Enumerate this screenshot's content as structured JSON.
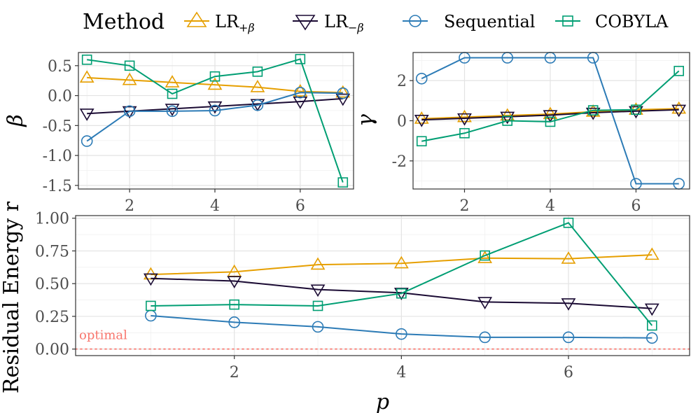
{
  "legend": {
    "title": "Method",
    "entries": [
      {
        "key": "lr_plus",
        "label_main": "LR",
        "label_sub": "+β",
        "color": "#E69F00",
        "marker": "triangle-up"
      },
      {
        "key": "lr_minus",
        "label_main": "LR",
        "label_sub": "−β",
        "color": "#1A0A33",
        "marker": "triangle-down"
      },
      {
        "key": "sequential",
        "label_main": "Sequential",
        "label_sub": "",
        "color": "#2C7BB6",
        "marker": "circle"
      },
      {
        "key": "cobyla",
        "label_main": "COBYLA",
        "label_sub": "",
        "color": "#009E73",
        "marker": "square"
      }
    ]
  },
  "chart_data": [
    {
      "id": "beta",
      "type": "line",
      "ylabel": "β",
      "xlabel": "",
      "xlim": [
        0.8,
        7.25
      ],
      "ylim": [
        -1.56,
        0.72
      ],
      "xticks": [
        2,
        4,
        6
      ],
      "yticks": [
        0.5,
        0.0,
        -0.5,
        -1.0,
        -1.5
      ],
      "ytick_labels": [
        "0.5",
        "0.0",
        "-0.5",
        "-1.0",
        "-1.5"
      ],
      "grid": true,
      "x": [
        1,
        2,
        3,
        4,
        5,
        6,
        7
      ],
      "series": [
        {
          "key": "lr_plus",
          "values": [
            0.3,
            0.26,
            0.22,
            0.18,
            0.14,
            0.07,
            0.05
          ]
        },
        {
          "key": "lr_minus",
          "values": [
            -0.3,
            -0.26,
            -0.22,
            -0.18,
            -0.14,
            -0.1,
            -0.05
          ]
        },
        {
          "key": "sequential",
          "values": [
            -0.76,
            -0.26,
            -0.26,
            -0.25,
            -0.16,
            0.05,
            0.04
          ]
        },
        {
          "key": "cobyla",
          "values": [
            0.6,
            0.5,
            0.03,
            0.32,
            0.4,
            0.61,
            -1.45
          ]
        }
      ]
    },
    {
      "id": "gamma",
      "type": "line",
      "ylabel": "γ",
      "xlabel": "",
      "xlim": [
        0.8,
        7.25
      ],
      "ylim": [
        -3.4,
        3.4
      ],
      "xticks": [
        2,
        4,
        6
      ],
      "yticks": [
        2,
        0,
        -2
      ],
      "ytick_labels": [
        "2",
        "0",
        "-2"
      ],
      "grid": true,
      "x": [
        1,
        2,
        3,
        4,
        5,
        6,
        7
      ],
      "series": [
        {
          "key": "lr_plus",
          "values": [
            0.1,
            0.18,
            0.26,
            0.33,
            0.45,
            0.55,
            0.6
          ]
        },
        {
          "key": "lr_minus",
          "values": [
            0.05,
            0.12,
            0.2,
            0.28,
            0.4,
            0.48,
            0.55
          ]
        },
        {
          "key": "sequential",
          "values": [
            2.1,
            3.14,
            3.14,
            3.14,
            3.14,
            -3.14,
            -3.14
          ]
        },
        {
          "key": "cobyla",
          "values": [
            -1.02,
            -0.62,
            0.0,
            -0.05,
            0.52,
            0.55,
            2.48
          ]
        }
      ]
    },
    {
      "id": "residual",
      "type": "line",
      "ylabel": "Residual Energy r",
      "xlabel": "p",
      "xlim": [
        0.1,
        7.45
      ],
      "ylim": [
        -0.05,
        1.02
      ],
      "xticks": [
        2,
        4,
        6
      ],
      "yticks": [
        0.0,
        0.25,
        0.5,
        0.75,
        1.0
      ],
      "ytick_labels": [
        "0.00",
        "0.25",
        "0.50",
        "0.75",
        "1.00"
      ],
      "grid": true,
      "x": [
        1,
        2,
        3,
        4,
        5,
        6,
        7
      ],
      "series": [
        {
          "key": "lr_plus",
          "values": [
            0.57,
            0.59,
            0.645,
            0.655,
            0.695,
            0.69,
            0.72
          ]
        },
        {
          "key": "lr_minus",
          "values": [
            0.54,
            0.52,
            0.455,
            0.43,
            0.36,
            0.35,
            0.31
          ]
        },
        {
          "key": "sequential",
          "values": [
            0.255,
            0.205,
            0.17,
            0.115,
            0.09,
            0.09,
            0.085
          ]
        },
        {
          "key": "cobyla",
          "values": [
            0.33,
            0.34,
            0.33,
            0.425,
            0.715,
            0.965,
            0.18
          ]
        }
      ],
      "reference_line": {
        "y": 0.0,
        "label": "optimal",
        "color": "#F8766D"
      }
    }
  ],
  "tick_x_labels": [
    "2",
    "4",
    "6"
  ]
}
